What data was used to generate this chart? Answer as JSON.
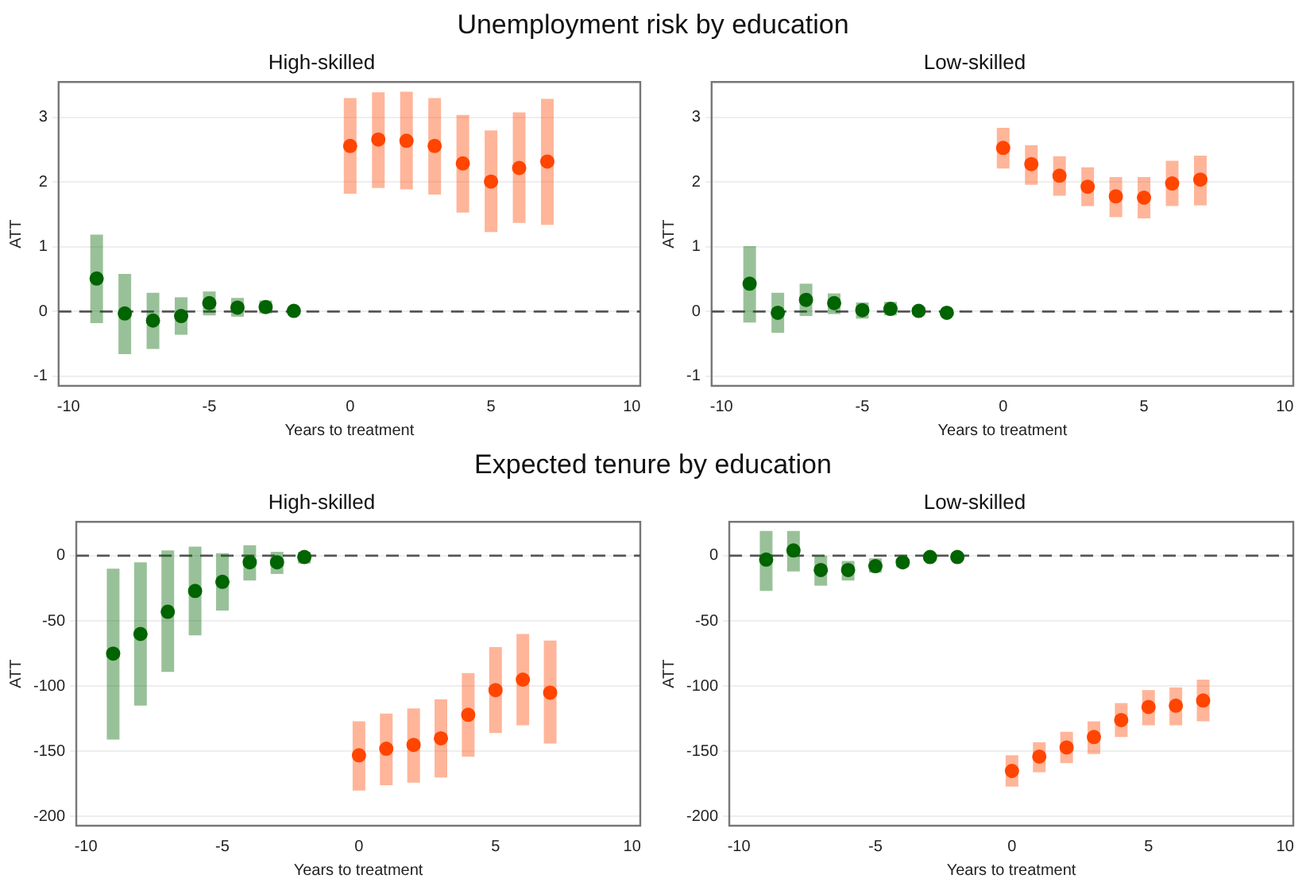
{
  "chart_data": [
    {
      "type": "scatter",
      "title": "Unemployment risk by education",
      "subtitle": "High-skilled",
      "xlabel": "Years to treatment",
      "ylabel": "ATT",
      "xlim": [
        -10.35,
        10.3
      ],
      "xticks": [
        -10,
        -5,
        0,
        5,
        10
      ],
      "ylim": [
        -1.15,
        3.55
      ],
      "yticks": [
        -1,
        0,
        1,
        2,
        3
      ],
      "grid": "y",
      "legend": false,
      "marker": "circle",
      "ref_lines": [
        {
          "axis": "y",
          "value": 0,
          "line_style": "dashed",
          "color": "#555555"
        }
      ],
      "series": [
        {
          "color": "#006400",
          "x": [
            -9,
            -8,
            -7,
            -6,
            -5,
            -4,
            -3,
            -2
          ],
          "values": [
            0.51,
            -0.03,
            -0.14,
            -0.07,
            0.13,
            0.06,
            0.07,
            0.01
          ],
          "errors": [
            [
              -0.18,
              1.19
            ],
            [
              -0.66,
              0.58
            ],
            [
              -0.58,
              0.29
            ],
            [
              -0.36,
              0.22
            ],
            [
              -0.06,
              0.31
            ],
            [
              -0.08,
              0.21
            ],
            [
              -0.03,
              0.17
            ],
            [
              -0.05,
              0.05
            ]
          ]
        },
        {
          "color": "#ff4500",
          "x": [
            0,
            1,
            2,
            3,
            4,
            5,
            6,
            7
          ],
          "values": [
            2.56,
            2.66,
            2.64,
            2.56,
            2.29,
            2.01,
            2.22,
            2.32
          ],
          "errors": [
            [
              1.82,
              3.3
            ],
            [
              1.91,
              3.39
            ],
            [
              1.89,
              3.4
            ],
            [
              1.81,
              3.3
            ],
            [
              1.53,
              3.04
            ],
            [
              1.23,
              2.8
            ],
            [
              1.37,
              3.08
            ],
            [
              1.34,
              3.29
            ]
          ]
        }
      ]
    },
    {
      "type": "scatter",
      "subtitle": "Low-skilled",
      "xlabel": "Years to treatment",
      "ylabel": "ATT",
      "xlim": [
        -10.35,
        10.3
      ],
      "xticks": [
        -10,
        -5,
        0,
        5,
        10
      ],
      "ylim": [
        -1.15,
        3.55
      ],
      "yticks": [
        -1,
        0,
        1,
        2,
        3
      ],
      "grid": "y",
      "legend": false,
      "marker": "circle",
      "ref_lines": [
        {
          "axis": "y",
          "value": 0,
          "line_style": "dashed",
          "color": "#555555"
        }
      ],
      "series": [
        {
          "color": "#006400",
          "x": [
            -9,
            -8,
            -7,
            -6,
            -5,
            -4,
            -3,
            -2
          ],
          "values": [
            0.43,
            -0.02,
            0.18,
            0.13,
            0.02,
            0.04,
            0.01,
            -0.02
          ],
          "errors": [
            [
              -0.17,
              1.01
            ],
            [
              -0.33,
              0.29
            ],
            [
              -0.07,
              0.43
            ],
            [
              -0.04,
              0.28
            ],
            [
              -0.11,
              0.14
            ],
            [
              -0.06,
              0.15
            ],
            [
              -0.06,
              0.07
            ],
            [
              -0.07,
              0.03
            ]
          ]
        },
        {
          "color": "#ff4500",
          "x": [
            0,
            1,
            2,
            3,
            4,
            5,
            6,
            7
          ],
          "values": [
            2.53,
            2.28,
            2.1,
            1.93,
            1.78,
            1.76,
            1.98,
            2.04
          ],
          "errors": [
            [
              2.21,
              2.84
            ],
            [
              1.96,
              2.57
            ],
            [
              1.79,
              2.4
            ],
            [
              1.63,
              2.23
            ],
            [
              1.46,
              2.08
            ],
            [
              1.44,
              2.08
            ],
            [
              1.63,
              2.33
            ],
            [
              1.64,
              2.41
            ]
          ]
        }
      ]
    },
    {
      "type": "scatter",
      "title": "Expected tenure by education",
      "subtitle": "High-skilled",
      "xlabel": "Years to treatment",
      "ylabel": "ATT",
      "xlim": [
        -10.35,
        10.3
      ],
      "xticks": [
        -10,
        -5,
        0,
        5,
        10
      ],
      "ylim": [
        -207,
        26
      ],
      "yticks": [
        -200,
        -150,
        -100,
        -50,
        0
      ],
      "grid": "y",
      "legend": false,
      "marker": "circle",
      "ref_lines": [
        {
          "axis": "y",
          "value": 0,
          "line_style": "dashed",
          "color": "#555555"
        }
      ],
      "series": [
        {
          "color": "#006400",
          "x": [
            -9,
            -8,
            -7,
            -6,
            -5,
            -4,
            -3,
            -2
          ],
          "values": [
            -75,
            -60,
            -43,
            -27,
            -20,
            -5,
            -5,
            -1
          ],
          "errors": [
            [
              -141,
              -10
            ],
            [
              -115,
              -5
            ],
            [
              -89,
              4
            ],
            [
              -61,
              7
            ],
            [
              -42,
              2
            ],
            [
              -19,
              8
            ],
            [
              -14,
              3
            ],
            [
              -6,
              3
            ]
          ]
        },
        {
          "color": "#ff4500",
          "x": [
            0,
            1,
            2,
            3,
            4,
            5,
            6,
            7
          ],
          "values": [
            -153,
            -148,
            -145,
            -140,
            -122,
            -103,
            -95,
            -105
          ],
          "errors": [
            [
              -180,
              -127
            ],
            [
              -176,
              -121
            ],
            [
              -174,
              -117
            ],
            [
              -170,
              -110
            ],
            [
              -154,
              -90
            ],
            [
              -136,
              -70
            ],
            [
              -130,
              -60
            ],
            [
              -144,
              -65
            ]
          ]
        }
      ]
    },
    {
      "type": "scatter",
      "subtitle": "Low-skilled",
      "xlabel": "Years to treatment",
      "ylabel": "ATT",
      "xlim": [
        -10.35,
        10.3
      ],
      "xticks": [
        -10,
        -5,
        0,
        5,
        10
      ],
      "ylim": [
        -207,
        26
      ],
      "yticks": [
        -200,
        -150,
        -100,
        -50,
        0
      ],
      "grid": "y",
      "legend": false,
      "marker": "circle",
      "ref_lines": [
        {
          "axis": "y",
          "value": 0,
          "line_style": "dashed",
          "color": "#555555"
        }
      ],
      "series": [
        {
          "color": "#006400",
          "x": [
            -9,
            -8,
            -7,
            -6,
            -5,
            -4,
            -3,
            -2
          ],
          "values": [
            -3,
            4,
            -11,
            -11,
            -8,
            -5,
            -1,
            -1
          ],
          "errors": [
            [
              -27,
              19
            ],
            [
              -12,
              19
            ],
            [
              -23,
              0
            ],
            [
              -19,
              -4
            ],
            [
              -13,
              -2
            ],
            [
              -9,
              -2
            ],
            [
              -4,
              1
            ],
            [
              -3,
              2
            ]
          ]
        },
        {
          "color": "#ff4500",
          "x": [
            0,
            1,
            2,
            3,
            4,
            5,
            6,
            7
          ],
          "values": [
            -165,
            -154,
            -147,
            -139,
            -126,
            -116,
            -115,
            -111
          ],
          "errors": [
            [
              -177,
              -153
            ],
            [
              -166,
              -143
            ],
            [
              -159,
              -135
            ],
            [
              -152,
              -127
            ],
            [
              -139,
              -113
            ],
            [
              -130,
              -103
            ],
            [
              -130,
              -101
            ],
            [
              -127,
              -95
            ]
          ]
        }
      ]
    }
  ]
}
